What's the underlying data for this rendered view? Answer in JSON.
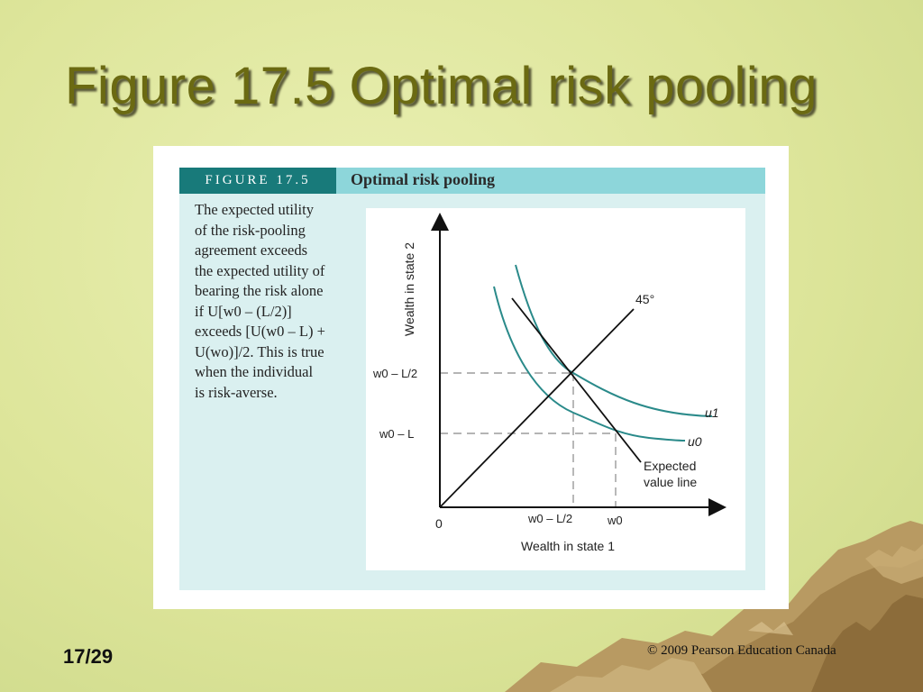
{
  "slide": {
    "title": "Figure 17.5 Optimal risk pooling",
    "page_number": "17/29",
    "copyright": "© 2009 Pearson Education Canada"
  },
  "figure": {
    "tab_label": "FIGURE 17.5",
    "title": "Optimal risk pooling",
    "caption_lines": [
      "The expected utility",
      "of the risk-pooling",
      "agreement exceeds",
      "the expected utility of",
      "bearing the risk alone",
      "if U[w0 – (L/2)]",
      "exceeds [U(w0 – L) +",
      "U(wo)]/2. This is true",
      "when the individual",
      "is risk-averse."
    ]
  },
  "diagram": {
    "y_axis_label": "Wealth in state 2",
    "x_axis_label": "Wealth in state 1",
    "origin_label": "0",
    "line_45_label": "45°",
    "y_tick_1": "w0 – L/2",
    "y_tick_2": "w0 – L",
    "x_tick_1": "w0 – L/2",
    "x_tick_2": "w0",
    "curve_u1_label": "u1",
    "curve_u0_label": "u0",
    "ev_line_label_1": "Expected",
    "ev_line_label_2": "value line",
    "colors": {
      "curve": "#2a8a8a",
      "line": "#111111",
      "dashed": "#888888"
    }
  }
}
